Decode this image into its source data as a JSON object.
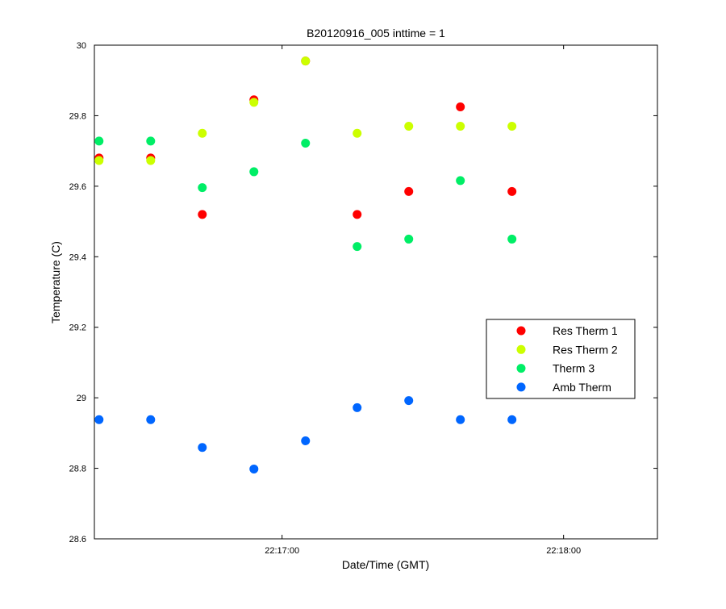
{
  "chart_data": {
    "type": "scatter",
    "title": "B20120916_005 inttime = 1",
    "xlabel": "Date/Time (GMT)",
    "ylabel": "Temperature (C)",
    "xlim": [
      "22:16:20",
      "22:18:20"
    ],
    "ylim": [
      28.6,
      30
    ],
    "x_ticks": [
      "22:17:00",
      "22:18:00"
    ],
    "y_ticks": [
      "28.6",
      "28.8",
      "29",
      "29.2",
      "29.4",
      "29.6",
      "29.8",
      "30"
    ],
    "grid": false,
    "legend_position": "right",
    "series": [
      {
        "name": "Res Therm 1",
        "color": "#ff0000",
        "x": [
          "22:16:21",
          "22:16:32",
          "22:16:43",
          "22:16:54",
          "22:17:05",
          "22:17:16",
          "22:17:27",
          "22:17:38",
          "22:17:49"
        ],
        "values": [
          29.68,
          29.68,
          29.52,
          29.845,
          29.955,
          29.52,
          29.585,
          29.825,
          29.585
        ]
      },
      {
        "name": "Res Therm 2",
        "color": "#ccff00",
        "x": [
          "22:16:21",
          "22:16:32",
          "22:16:43",
          "22:16:54",
          "22:17:05",
          "22:17:16",
          "22:17:27",
          "22:17:38",
          "22:17:49"
        ],
        "values": [
          29.673,
          29.673,
          29.75,
          29.838,
          29.955,
          29.75,
          29.77,
          29.77,
          29.77
        ]
      },
      {
        "name": "Therm 3",
        "color": "#00ee66",
        "x": [
          "22:16:21",
          "22:16:32",
          "22:16:43",
          "22:16:54",
          "22:17:05",
          "22:17:16",
          "22:17:27",
          "22:17:38",
          "22:17:49"
        ],
        "values": [
          29.728,
          29.728,
          29.596,
          29.641,
          29.722,
          29.429,
          29.45,
          29.616,
          29.45
        ]
      },
      {
        "name": "Amb Therm",
        "color": "#0066ff",
        "x": [
          "22:16:21",
          "22:16:32",
          "22:16:43",
          "22:16:54",
          "22:17:05",
          "22:17:16",
          "22:17:27",
          "22:17:38",
          "22:17:49"
        ],
        "values": [
          28.938,
          28.938,
          28.859,
          28.798,
          28.878,
          28.972,
          28.992,
          28.938,
          28.938
        ]
      }
    ]
  }
}
